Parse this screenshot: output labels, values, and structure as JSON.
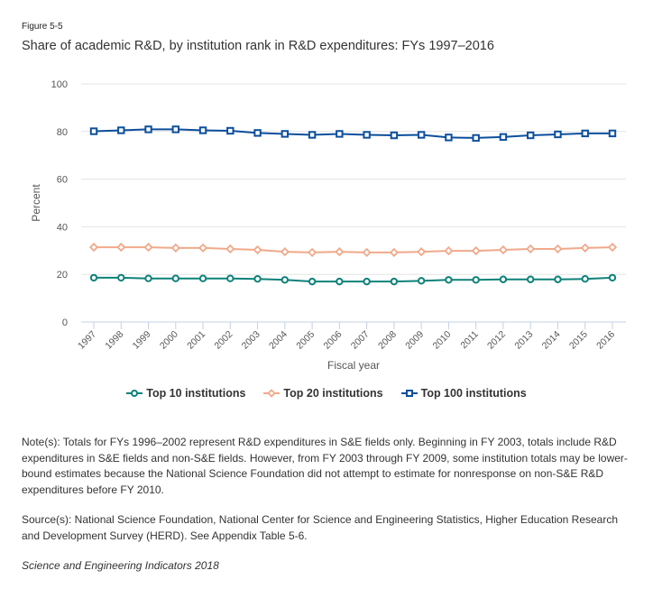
{
  "figure_label": "Figure 5-5",
  "title": "Share of academic R&D, by institution rank in R&D expenditures: FYs 1997–2016",
  "notes": "Note(s): Totals for FYs 1996–2002 represent R&D expenditures in S&E fields only. Beginning in FY 2003, totals include R&D expenditures in S&E fields and non-S&E fields. However, from FY 2003 through FY 2009, some institution totals may be lower-bound estimates because the National Science Foundation did not attempt to estimate for nonresponse on non-S&E R&D expenditures before FY 2010.",
  "source": "Source(s): National Science Foundation, National Center for Science and Engineering Statistics, Higher Education Research and Development Survey (HERD). See Appendix Table 5-6.",
  "publication": "Science and Engineering Indicators 2018",
  "chart_data": {
    "type": "line",
    "title": "Share of academic R&D, by institution rank in R&D expenditures: FYs 1997–2016",
    "xlabel": "Fiscal year",
    "ylabel": "Percent",
    "ylim": [
      0,
      100
    ],
    "yticks": [
      0,
      20,
      40,
      60,
      80,
      100
    ],
    "grid": true,
    "legend_position": "bottom-center",
    "x": [
      "1997",
      "1998",
      "1999",
      "2000",
      "2001",
      "2002",
      "2003",
      "2004",
      "2005",
      "2006",
      "2007",
      "2008",
      "2009",
      "2010",
      "2011",
      "2012",
      "2013",
      "2014",
      "2015",
      "2016"
    ],
    "series": [
      {
        "name": "Top 10 institutions",
        "color": "#0e8279",
        "marker": "circle",
        "values": [
          18.6,
          18.6,
          18.3,
          18.3,
          18.3,
          18.3,
          18.1,
          17.7,
          17.0,
          17.0,
          17.0,
          17.0,
          17.3,
          17.7,
          17.7,
          17.9,
          17.9,
          17.9,
          18.1,
          18.6
        ]
      },
      {
        "name": "Top 20 institutions",
        "color": "#f0a98a",
        "marker": "diamond",
        "values": [
          31.4,
          31.4,
          31.4,
          31.1,
          31.1,
          30.7,
          30.3,
          29.5,
          29.2,
          29.5,
          29.2,
          29.2,
          29.5,
          29.9,
          29.9,
          30.3,
          30.7,
          30.7,
          31.1,
          31.4
        ]
      },
      {
        "name": "Top 100 institutions",
        "color": "#0d4f9c",
        "marker": "square",
        "values": [
          80.1,
          80.5,
          80.9,
          80.9,
          80.5,
          80.3,
          79.4,
          79.0,
          78.6,
          79.0,
          78.6,
          78.4,
          78.6,
          77.5,
          77.3,
          77.7,
          78.4,
          78.8,
          79.2,
          79.2
        ]
      }
    ]
  }
}
